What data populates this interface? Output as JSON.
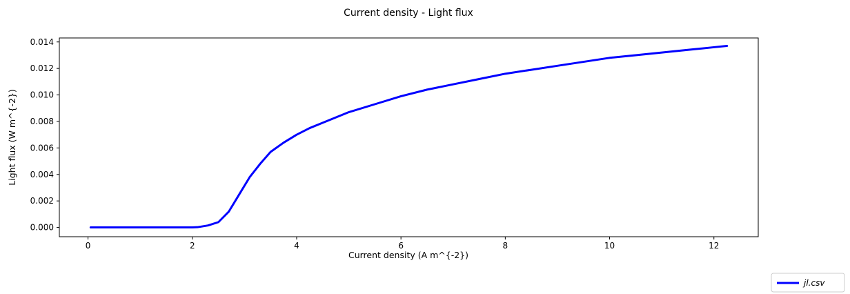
{
  "chart_data": {
    "type": "line",
    "title": "Current density - Light flux",
    "xlabel": "Current density (A m^{-2})",
    "ylabel": "Light flux (W m^{-2})",
    "xlim": [
      -0.55,
      12.85
    ],
    "ylim": [
      -0.0007,
      0.0143
    ],
    "xticks": [
      0,
      2,
      4,
      6,
      8,
      10,
      12
    ],
    "xtick_labels": [
      "0",
      "2",
      "4",
      "6",
      "8",
      "10",
      "12"
    ],
    "yticks": [
      0.0,
      0.002,
      0.004,
      0.006,
      0.008,
      0.01,
      0.012,
      0.014
    ],
    "ytick_labels": [
      "0.000",
      "0.002",
      "0.004",
      "0.006",
      "0.008",
      "0.010",
      "0.012",
      "0.014"
    ],
    "grid": false,
    "legend_position": "bottom-right, outside plot area",
    "series": [
      {
        "name": "jl.csv",
        "color": "#0000ff",
        "x": [
          0.05,
          0.5,
          1.0,
          1.5,
          2.0,
          2.1,
          2.3,
          2.5,
          2.7,
          2.9,
          3.1,
          3.3,
          3.5,
          3.75,
          4.0,
          4.25,
          4.5,
          5.0,
          5.5,
          6.0,
          6.5,
          7.0,
          7.5,
          8.0,
          8.5,
          9.0,
          9.5,
          10.0,
          10.5,
          11.0,
          11.5,
          12.0,
          12.25
        ],
        "y": [
          0.0,
          0.0,
          0.0,
          0.0,
          0.0,
          2e-05,
          0.00015,
          0.0004,
          0.0012,
          0.0025,
          0.0038,
          0.0048,
          0.0057,
          0.0064,
          0.007,
          0.0075,
          0.0079,
          0.0087,
          0.0093,
          0.0099,
          0.0104,
          0.0108,
          0.0112,
          0.0116,
          0.0119,
          0.0122,
          0.0125,
          0.0128,
          0.013,
          0.0132,
          0.0134,
          0.0136,
          0.0137
        ]
      }
    ]
  }
}
